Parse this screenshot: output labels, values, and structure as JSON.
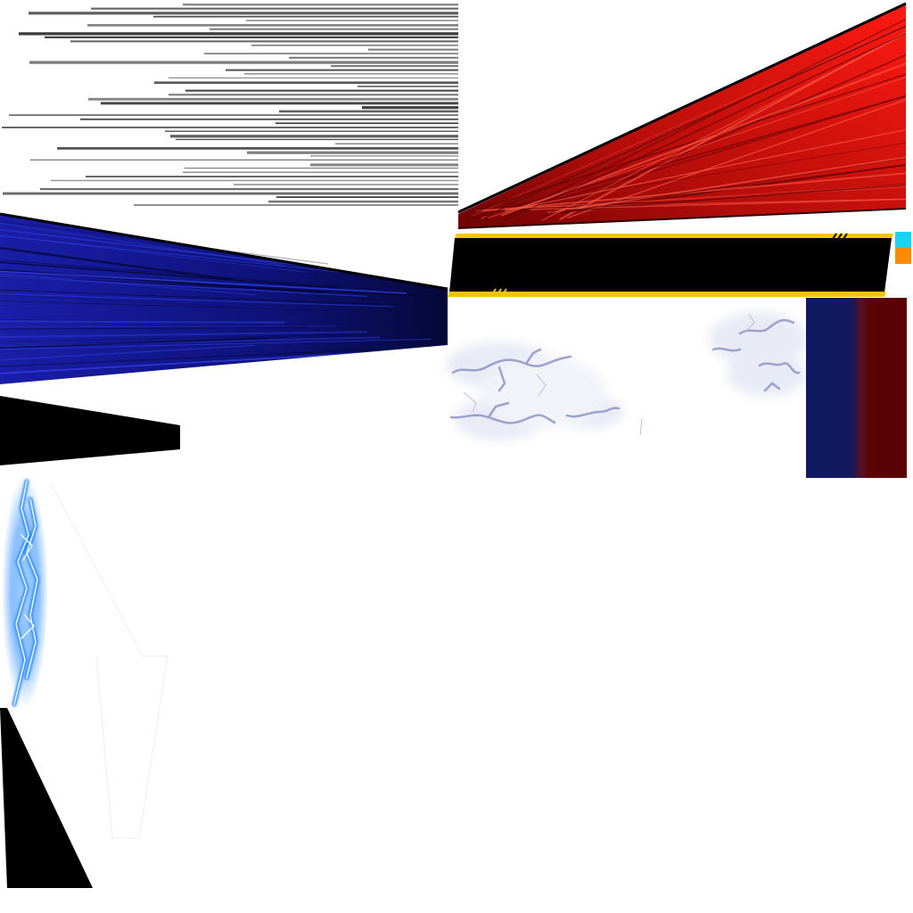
{
  "texture_atlas": {
    "colors": {
      "red_banner": "#e8140f",
      "red_banner_dark": "#6e0404",
      "blue_banner": "#1a1ea8",
      "blue_banner_dark": "#050838",
      "black_plate": "#000000",
      "plate_trim": "#f5c400",
      "chip_cyan": "#19d3f2",
      "chip_orange": "#ff8a00",
      "speed_line": "#3a3a3a",
      "lightning_blue": "#2f8cff",
      "electric_cloud": "#8e95c4",
      "swatch_blue": "#111a5e",
      "swatch_red": "#5a0004"
    },
    "sprites": [
      {
        "name": "speed-lines",
        "icon": "speed-lines-icon"
      },
      {
        "name": "red-wedge-banner",
        "icon": "red-banner-icon"
      },
      {
        "name": "blue-wedge-banner",
        "icon": "blue-banner-icon"
      },
      {
        "name": "black-nameplate",
        "icon": "nameplate-icon"
      },
      {
        "name": "electric-cloud",
        "icon": "electric-cloud-icon"
      },
      {
        "name": "color-swatch",
        "icon": "swatch-icon"
      },
      {
        "name": "black-wedge",
        "icon": "black-wedge-icon"
      },
      {
        "name": "lightning-bolt",
        "icon": "lightning-icon"
      },
      {
        "name": "black-triangle",
        "icon": "triangle-icon"
      },
      {
        "name": "faint-wedge-outline",
        "icon": "outline-wedge-icon"
      }
    ]
  }
}
